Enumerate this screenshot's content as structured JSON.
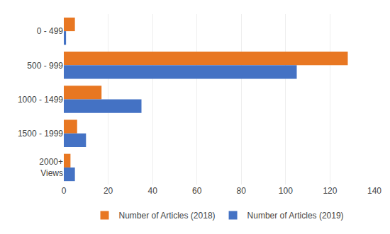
{
  "chart_data": {
    "type": "bar",
    "orientation": "horizontal",
    "categories": [
      "0 - 499",
      "500 - 999",
      "1000 - 1499",
      "1500 - 1999",
      "2000+\nViews"
    ],
    "series": [
      {
        "name": "Number of Articles (2018)",
        "color": "#E87722",
        "values": [
          5,
          128,
          17,
          6,
          3
        ]
      },
      {
        "name": "Number of Articles (2019)",
        "color": "#4472C4",
        "values": [
          1,
          105,
          35,
          10,
          5
        ]
      }
    ],
    "xlim": [
      0,
      140
    ],
    "xticks": [
      0,
      20,
      40,
      60,
      80,
      100,
      120,
      140
    ],
    "grid": true,
    "legend": "bottom"
  }
}
